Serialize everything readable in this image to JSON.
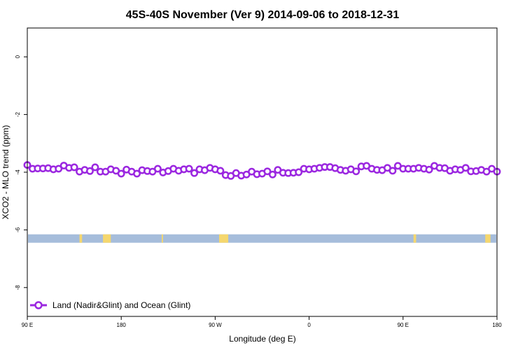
{
  "chart_data": {
    "type": "line",
    "title": "45S-40S November (Ver 9)   2014-09-06 to 2018-12-31",
    "xlabel": "Longitude (deg E)",
    "ylabel": "XCO2 - MLO trend (ppm)",
    "xlim": [
      90,
      450
    ],
    "ylim": [
      -9,
      1
    ],
    "x_ticks": [
      {
        "value": 90,
        "label": "90 E"
      },
      {
        "value": 162,
        "label": "180"
      },
      {
        "value": 234,
        "label": "90 W"
      },
      {
        "value": 306,
        "label": "0"
      },
      {
        "value": 378,
        "label": "90 E"
      },
      {
        "value": 450,
        "label": "180"
      }
    ],
    "y_ticks": [
      {
        "value": 0,
        "label": "0"
      },
      {
        "value": -2,
        "label": "-2"
      },
      {
        "value": -4,
        "label": "-4"
      },
      {
        "value": -6,
        "label": "-6"
      },
      {
        "value": -8,
        "label": "-8"
      }
    ],
    "series": [
      {
        "name": "Land (Nadir&Glint) and Ocean (Glint)",
        "color": "#9b27e0",
        "x": [
          90,
          94,
          98,
          102,
          106,
          110,
          114,
          118,
          122,
          126,
          130,
          134,
          138,
          142,
          146,
          150,
          154,
          158,
          162,
          166,
          170,
          174,
          178,
          182,
          186,
          190,
          194,
          198,
          202,
          206,
          210,
          214,
          218,
          222,
          226,
          230,
          234,
          238,
          242,
          246,
          250,
          254,
          258,
          262,
          266,
          270,
          274,
          278,
          282,
          286,
          290,
          294,
          298,
          302,
          306,
          310,
          314,
          318,
          322,
          326,
          330,
          334,
          338,
          342,
          346,
          350,
          354,
          358,
          362,
          366,
          370,
          374,
          378,
          382,
          386,
          390,
          394,
          398,
          402,
          406,
          410,
          414,
          418,
          422,
          426,
          430,
          434,
          438,
          442,
          446,
          450
        ],
        "y": [
          -3.75,
          -3.88,
          -3.87,
          -3.87,
          -3.86,
          -3.9,
          -3.88,
          -3.77,
          -3.85,
          -3.83,
          -3.98,
          -3.92,
          -3.96,
          -3.83,
          -3.98,
          -3.98,
          -3.9,
          -3.95,
          -4.05,
          -3.91,
          -3.98,
          -4.05,
          -3.93,
          -3.96,
          -3.98,
          -3.88,
          -4.01,
          -3.96,
          -3.88,
          -3.95,
          -3.9,
          -3.88,
          -4.03,
          -3.9,
          -3.93,
          -3.85,
          -3.9,
          -3.95,
          -4.1,
          -4.13,
          -4.03,
          -4.12,
          -4.08,
          -3.98,
          -4.07,
          -4.05,
          -3.97,
          -4.08,
          -3.92,
          -4.02,
          -4.03,
          -4.02,
          -4.0,
          -3.88,
          -3.9,
          -3.88,
          -3.85,
          -3.82,
          -3.82,
          -3.86,
          -3.92,
          -3.95,
          -3.9,
          -3.97,
          -3.8,
          -3.78,
          -3.88,
          -3.92,
          -3.93,
          -3.85,
          -3.95,
          -3.78,
          -3.88,
          -3.88,
          -3.88,
          -3.85,
          -3.88,
          -3.91,
          -3.78,
          -3.85,
          -3.86,
          -3.95,
          -3.9,
          -3.92,
          -3.85,
          -3.97,
          -3.96,
          -3.92,
          -3.98,
          -3.88,
          -3.98
        ]
      }
    ],
    "surface_band": {
      "y_center": -6.3,
      "ocean_color": "#a6bddb",
      "land_color": "#f5d76e",
      "land_segments": [
        [
          130,
          132
        ],
        [
          148,
          154
        ],
        [
          193,
          194
        ],
        [
          237,
          244
        ],
        [
          386,
          388
        ],
        [
          441,
          445
        ]
      ]
    },
    "legend": {
      "position": "bottom-left",
      "label": "Land (Nadir&Glint) and Ocean (Glint)"
    },
    "grid": false
  }
}
